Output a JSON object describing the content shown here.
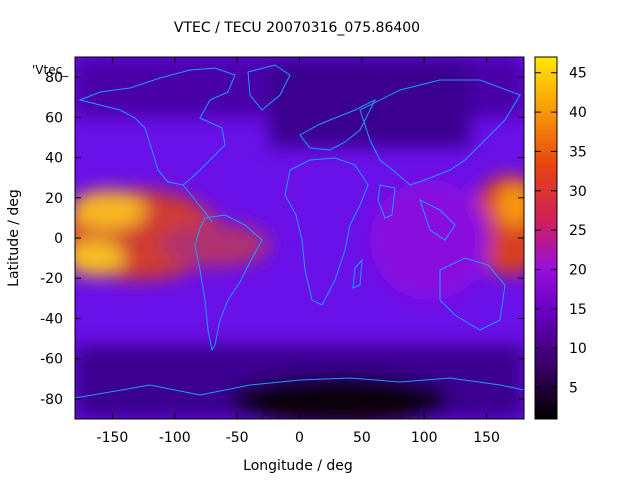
{
  "chart_data": {
    "type": "heatmap",
    "title": "VTEC / TECU 20070316_075.86400",
    "xlabel": "Longitude / deg",
    "ylabel": "Latitude / deg",
    "xlim": [
      -180,
      180
    ],
    "ylim": [
      -90,
      90
    ],
    "x_ticks": [
      -150,
      -100,
      -50,
      0,
      50,
      100,
      150
    ],
    "y_ticks": [
      -80,
      -60,
      -40,
      -20,
      0,
      20,
      40,
      60,
      80
    ],
    "colorbar": {
      "range": [
        1,
        47
      ],
      "ticks": [
        5,
        10,
        15,
        20,
        25,
        30,
        35,
        40,
        45
      ],
      "palette": [
        "#000000",
        "#3a0066",
        "#6a00c8",
        "#9a10d8",
        "#d0205a",
        "#e84410",
        "#f89808",
        "#ffe800"
      ]
    },
    "legend_entry": "'Vtec_",
    "coastline_color": "#1e9bff",
    "grid": false,
    "features": [
      {
        "lon": -170,
        "lat": 18,
        "vtec": 38
      },
      {
        "lon": -170,
        "lat": -12,
        "vtec": 40
      },
      {
        "lon": -130,
        "lat": 10,
        "vtec": 32
      },
      {
        "lon": -100,
        "lat": 0,
        "vtec": 30
      },
      {
        "lon": -70,
        "lat": -5,
        "vtec": 24
      },
      {
        "lon": 0,
        "lat": -82,
        "vtec": 2
      },
      {
        "lon": 170,
        "lat": 10,
        "vtec": 35
      },
      {
        "lon": 170,
        "lat": -15,
        "vtec": 30
      }
    ]
  }
}
